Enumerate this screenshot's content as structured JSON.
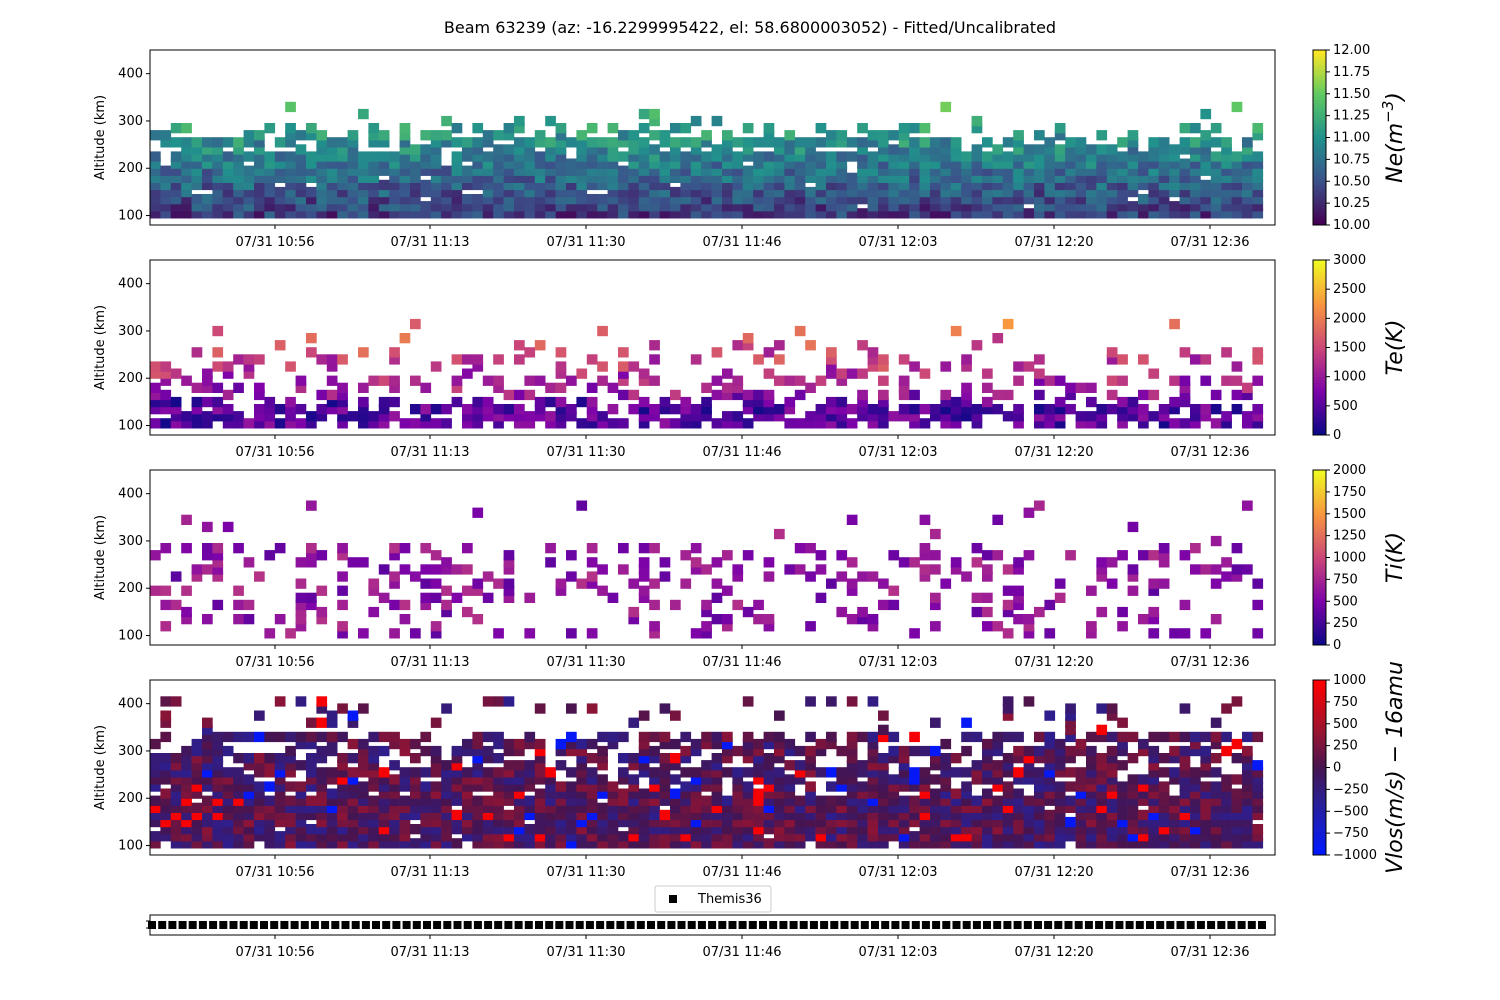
{
  "title": "Beam 63239 (az: -16.2299995422, el: 58.6800003052) - Fitted/Uncalibrated",
  "legend": {
    "label": "Themis36",
    "marker_color": "#000000"
  },
  "chart_data": [
    {
      "type": "heatmap",
      "name": "Ne",
      "colorbar_label": "Ne(m^-3)",
      "colormap": "viridis",
      "clim": [
        10.0,
        12.0
      ],
      "colorbar_ticks": [
        "10.00",
        "10.25",
        "10.50",
        "10.75",
        "11.00",
        "11.25",
        "11.50",
        "11.75",
        "12.00"
      ],
      "ylabel": "Altitude (km)",
      "ylim": [
        80,
        450
      ],
      "yticks": [
        "100",
        "200",
        "300",
        "400"
      ],
      "xticks": [
        "07/31 10:56",
        "07/31 11:13",
        "07/31 11:30",
        "07/31 11:46",
        "07/31 12:03",
        "07/31 12:20",
        "07/31 12:36"
      ],
      "x_range": [
        "10:40",
        "12:46"
      ],
      "time_bins": 72,
      "altitude_bins": [
        105,
        120,
        135,
        150,
        165,
        180,
        195,
        210,
        225,
        240,
        255,
        270,
        285,
        300,
        315,
        330
      ],
      "grid": false
    },
    {
      "type": "heatmap",
      "name": "Te",
      "colorbar_label": "Te(K)",
      "colormap": "plasma",
      "clim": [
        0,
        3000
      ],
      "colorbar_ticks": [
        "0",
        "500",
        "1000",
        "1500",
        "2000",
        "2500",
        "3000"
      ],
      "ylabel": "Altitude (km)",
      "ylim": [
        80,
        450
      ],
      "yticks": [
        "100",
        "200",
        "300",
        "400"
      ],
      "xticks": [
        "07/31 10:56",
        "07/31 11:13",
        "07/31 11:30",
        "07/31 11:46",
        "07/31 12:03",
        "07/31 12:20",
        "07/31 12:36"
      ],
      "grid": false
    },
    {
      "type": "heatmap",
      "name": "Ti",
      "colorbar_label": "Ti(K)",
      "colormap": "plasma",
      "clim": [
        0,
        2000
      ],
      "colorbar_ticks": [
        "0",
        "250",
        "500",
        "750",
        "1000",
        "1250",
        "1500",
        "1750",
        "2000"
      ],
      "ylabel": "Altitude (km)",
      "ylim": [
        80,
        450
      ],
      "yticks": [
        "100",
        "200",
        "300",
        "400"
      ],
      "xticks": [
        "07/31 10:56",
        "07/31 11:13",
        "07/31 11:30",
        "07/31 11:46",
        "07/31 12:03",
        "07/31 12:20",
        "07/31 12:36"
      ],
      "grid": false
    },
    {
      "type": "heatmap",
      "name": "Vlos",
      "colorbar_label": "Vlos(m/s) − 16amu",
      "colormap": "bwr-dark",
      "clim": [
        -1000,
        1000
      ],
      "colorbar_ticks": [
        "−1000",
        "−750",
        "−500",
        "−250",
        "0",
        "250",
        "500",
        "750",
        "1000"
      ],
      "ylabel": "Altitude (km)",
      "ylim": [
        80,
        450
      ],
      "yticks": [
        "100",
        "200",
        "300",
        "400"
      ],
      "xticks": [
        "07/31 10:56",
        "07/31 11:13",
        "07/31 11:30",
        "07/31 11:46",
        "07/31 12:03",
        "07/31 12:20",
        "07/31 12:36"
      ],
      "grid": false
    },
    {
      "type": "scatter",
      "name": "Themis36",
      "marker": "square",
      "marker_color": "#000000",
      "points": 110,
      "xticks": [
        "07/31 10:56",
        "07/31 11:13",
        "07/31 11:30",
        "07/31 11:46",
        "07/31 12:03",
        "07/31 12:20",
        "07/31 12:36"
      ]
    }
  ]
}
